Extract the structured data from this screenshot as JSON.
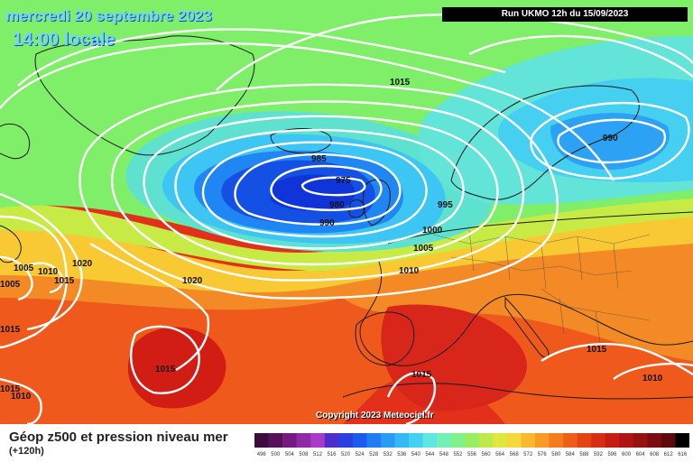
{
  "header": {
    "date": "mercredi 20 septembre 2023",
    "local_time": "14:00 locale",
    "run": "Run UKMO 12h du 15/09/2023"
  },
  "copyright": "Copyright 2023 Meteociel.fr",
  "footer": {
    "title": "Géop z500 et pression niveau mer",
    "lead": "(+120h)"
  },
  "legend": {
    "values": [
      "496",
      "500",
      "504",
      "508",
      "512",
      "516",
      "520",
      "524",
      "528",
      "532",
      "536",
      "540",
      "544",
      "548",
      "552",
      "556",
      "560",
      "564",
      "568",
      "572",
      "576",
      "580",
      "584",
      "588",
      "592",
      "596",
      "600",
      "604",
      "608",
      "612",
      "616"
    ],
    "colors": [
      "#3c0c3c",
      "#56115a",
      "#741b80",
      "#8e2aa5",
      "#a93ac9",
      "#4e2dc8",
      "#2b3ee0",
      "#1a5af0",
      "#1f7cf5",
      "#2a9af7",
      "#35b8f6",
      "#43d0f2",
      "#5ee6e0",
      "#72f0b6",
      "#7ff28a",
      "#98ee5e",
      "#bde94c",
      "#dfe640",
      "#f5d83a",
      "#f9b92f",
      "#f89a25",
      "#f57c1d",
      "#ef5e18",
      "#e64314",
      "#d72d13",
      "#c61c12",
      "#b11213",
      "#971012",
      "#7a0d10",
      "#5c0a0c",
      "#000000"
    ]
  },
  "pressure_labels": [
    {
      "id": "p1015-top",
      "text": "1015"
    },
    {
      "id": "p985",
      "text": "985"
    },
    {
      "id": "p975",
      "text": "975"
    },
    {
      "id": "p980",
      "text": "980"
    },
    {
      "id": "p990-center",
      "text": "990"
    },
    {
      "id": "p995",
      "text": "995"
    },
    {
      "id": "p1000",
      "text": "1000"
    },
    {
      "id": "p1005-mid",
      "text": "1005"
    },
    {
      "id": "p1010-mid",
      "text": "1010"
    },
    {
      "id": "p990-ne",
      "text": "990"
    },
    {
      "id": "p1020-west",
      "text": "1020"
    },
    {
      "id": "p1020-mid",
      "text": "1020"
    },
    {
      "id": "p1005-w1",
      "text": "1005"
    },
    {
      "id": "p1010-w",
      "text": "1010"
    },
    {
      "id": "p1005-w2",
      "text": "1005"
    },
    {
      "id": "p1015-w",
      "text": "1015"
    },
    {
      "id": "p1015-w2",
      "text": "1015"
    },
    {
      "id": "p1015-atl",
      "text": "1015"
    },
    {
      "id": "p1015-sw",
      "text": "1015"
    },
    {
      "id": "p1015-sw2",
      "text": "1015"
    },
    {
      "id": "p1015-se",
      "text": "1015"
    },
    {
      "id": "p1010-se",
      "text": "1010"
    },
    {
      "id": "p1010-sw",
      "text": "1010"
    },
    {
      "id": "p1015-sw3",
      "text": "1015"
    }
  ]
}
